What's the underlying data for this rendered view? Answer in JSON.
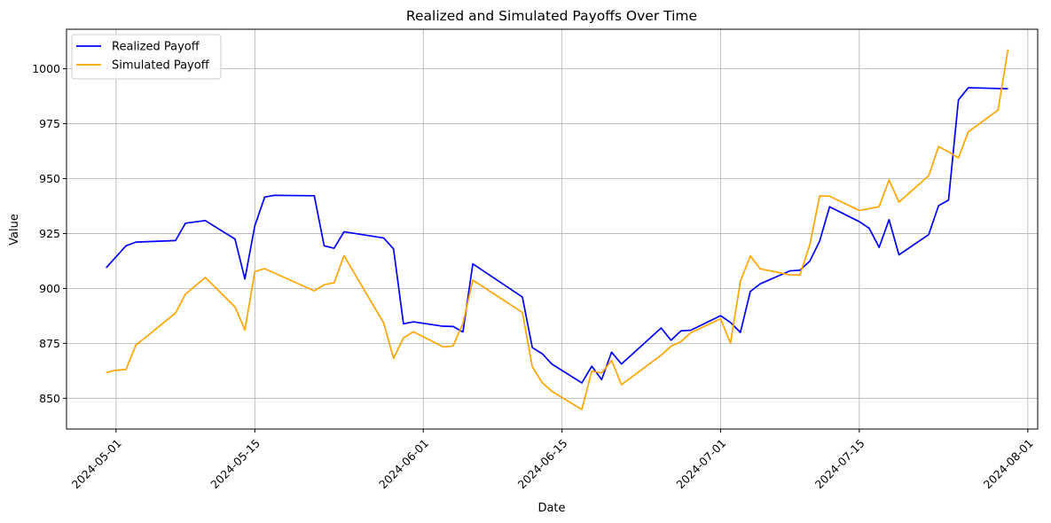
{
  "chart_data": {
    "type": "line",
    "title": "Realized and Simulated Payoffs Over Time",
    "xlabel": "Date",
    "ylabel": "Value",
    "xlim": [
      "2024-04-26",
      "2024-08-02"
    ],
    "ylim": [
      836,
      1018
    ],
    "x_ticks": [
      "2024-05-01",
      "2024-05-15",
      "2024-06-01",
      "2024-06-15",
      "2024-07-01",
      "2024-07-15",
      "2024-08-01"
    ],
    "y_ticks": [
      850,
      875,
      900,
      925,
      950,
      975,
      1000
    ],
    "grid": true,
    "legend_position": "top-left",
    "series": [
      {
        "name": "Realized Payoff",
        "color": "#0000ff",
        "x": [
          "2024-04-30",
          "2024-05-02",
          "2024-05-03",
          "2024-05-07",
          "2024-05-08",
          "2024-05-10",
          "2024-05-13",
          "2024-05-14",
          "2024-05-15",
          "2024-05-16",
          "2024-05-17",
          "2024-05-21",
          "2024-05-22",
          "2024-05-23",
          "2024-05-24",
          "2024-05-28",
          "2024-05-29",
          "2024-05-30",
          "2024-05-31",
          "2024-06-03",
          "2024-06-04",
          "2024-06-05",
          "2024-06-06",
          "2024-06-11",
          "2024-06-12",
          "2024-06-13",
          "2024-06-14",
          "2024-06-17",
          "2024-06-18",
          "2024-06-19",
          "2024-06-20",
          "2024-06-21",
          "2024-06-25",
          "2024-06-26",
          "2024-06-27",
          "2024-06-28",
          "2024-07-01",
          "2024-07-02",
          "2024-07-03",
          "2024-07-04",
          "2024-07-05",
          "2024-07-08",
          "2024-07-09",
          "2024-07-10",
          "2024-07-11",
          "2024-07-12",
          "2024-07-15",
          "2024-07-16",
          "2024-07-17",
          "2024-07-18",
          "2024-07-19",
          "2024-07-22",
          "2024-07-23",
          "2024-07-24",
          "2024-07-25",
          "2024-07-26",
          "2024-07-30"
        ],
        "y": [
          909.4,
          919.4,
          921.1,
          921.8,
          929.7,
          930.9,
          922.5,
          904.3,
          928.5,
          941.6,
          942.4,
          942.2,
          919.4,
          918.3,
          925.8,
          923.0,
          918.0,
          883.9,
          884.8,
          882.8,
          882.7,
          880.2,
          911.2,
          896.1,
          873.1,
          870.3,
          865.5,
          857.0,
          864.6,
          858.5,
          871.0,
          865.6,
          882.0,
          876.4,
          880.7,
          881.0,
          887.6,
          884.5,
          880.0,
          898.6,
          902.1,
          908.0,
          908.3,
          912.4,
          921.6,
          937.2,
          930.4,
          927.4,
          918.7,
          931.3,
          915.3,
          924.5,
          937.7,
          940.2,
          985.8,
          991.4,
          990.9
        ]
      },
      {
        "name": "Simulated Payoff",
        "color": "#ffa500",
        "x": [
          "2024-04-30",
          "2024-05-01",
          "2024-05-02",
          "2024-05-03",
          "2024-05-07",
          "2024-05-08",
          "2024-05-10",
          "2024-05-13",
          "2024-05-14",
          "2024-05-15",
          "2024-05-16",
          "2024-05-21",
          "2024-05-22",
          "2024-05-23",
          "2024-05-24",
          "2024-05-28",
          "2024-05-29",
          "2024-05-30",
          "2024-05-31",
          "2024-06-03",
          "2024-06-04",
          "2024-06-05",
          "2024-06-06",
          "2024-06-11",
          "2024-06-12",
          "2024-06-13",
          "2024-06-14",
          "2024-06-17",
          "2024-06-18",
          "2024-06-19",
          "2024-06-20",
          "2024-06-21",
          "2024-06-25",
          "2024-06-26",
          "2024-06-27",
          "2024-06-28",
          "2024-07-01",
          "2024-07-02",
          "2024-07-03",
          "2024-07-04",
          "2024-07-05",
          "2024-07-08",
          "2024-07-09",
          "2024-07-10",
          "2024-07-11",
          "2024-07-12",
          "2024-07-15",
          "2024-07-17",
          "2024-07-18",
          "2024-07-19",
          "2024-07-22",
          "2024-07-23",
          "2024-07-24",
          "2024-07-25",
          "2024-07-26",
          "2024-07-29",
          "2024-07-30"
        ],
        "y": [
          861.7,
          862.8,
          863.1,
          874.2,
          888.8,
          897.4,
          905.0,
          891.6,
          881.1,
          907.7,
          909.0,
          898.9,
          901.7,
          902.6,
          914.9,
          884.3,
          868.2,
          877.5,
          880.3,
          873.4,
          873.8,
          884.0,
          903.8,
          889.1,
          864.4,
          857.1,
          853.1,
          844.9,
          862.4,
          861.5,
          867.2,
          856.2,
          869.6,
          873.7,
          875.8,
          879.9,
          886.2,
          875.0,
          903.3,
          914.8,
          908.9,
          906.2,
          906.1,
          919.8,
          942.1,
          942.0,
          935.5,
          937.2,
          949.4,
          939.3,
          951.3,
          964.6,
          962.2,
          959.4,
          971.3,
          981.2,
          1008.8
        ]
      }
    ]
  }
}
